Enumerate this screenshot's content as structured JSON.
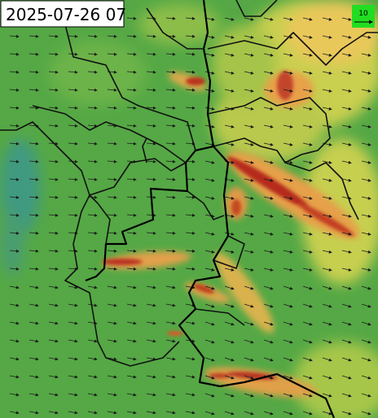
{
  "timestamp": "2025-07-26 07",
  "wind_legend": {
    "label": "10"
  }
}
